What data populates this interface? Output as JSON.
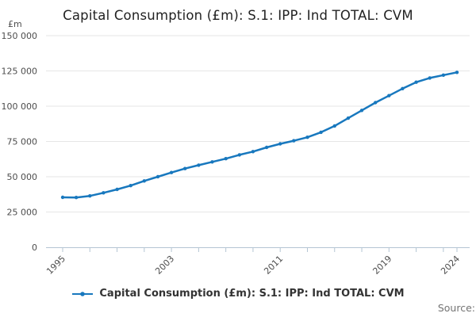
{
  "title": "Capital Consumption (£m): S.1: IPP: Ind TOTAL: CVM",
  "source_label": "Source:",
  "legend": {
    "label": "Capital Consumption (£m): S.1: IPP: Ind TOTAL: CVM"
  },
  "colors": {
    "line": "#1878be",
    "grid": "#e6e6e6",
    "axis": "#b4c5d3",
    "tick_text": "#4d4d4d",
    "title_text": "#222222",
    "source_text": "#737373"
  },
  "chart_data": {
    "type": "line",
    "title": "Capital Consumption (£m): S.1: IPP: Ind TOTAL: CVM",
    "xlabel": "",
    "ylabel": "£m",
    "ylim": [
      0,
      150000
    ],
    "yticks": [
      0,
      25000,
      50000,
      75000,
      100000,
      125000,
      150000
    ],
    "ytick_labels": [
      "0",
      "25 000",
      "50 000",
      "75 000",
      "100 000",
      "125 000",
      "150 000"
    ],
    "x": [
      1995,
      1996,
      1997,
      1998,
      1999,
      2000,
      2001,
      2002,
      2003,
      2004,
      2005,
      2006,
      2007,
      2008,
      2009,
      2010,
      2011,
      2012,
      2013,
      2014,
      2015,
      2016,
      2017,
      2018,
      2019,
      2020,
      2021,
      2022,
      2023,
      2024
    ],
    "xtick_interval": 2,
    "xtick_labeled": [
      1995,
      2003,
      2011,
      2019,
      2024
    ],
    "grid": true,
    "legend_position": "bottom",
    "series": [
      {
        "name": "Capital Consumption (£m): S.1: IPP: Ind TOTAL: CVM",
        "values": [
          35400,
          35300,
          36400,
          38600,
          41000,
          43700,
          47000,
          50000,
          53000,
          55800,
          58200,
          60500,
          62800,
          65500,
          67800,
          70800,
          73300,
          75500,
          78000,
          81500,
          86000,
          91500,
          97000,
          102500,
          107500,
          112500,
          117000,
          120000,
          122000,
          124000
        ]
      }
    ]
  }
}
